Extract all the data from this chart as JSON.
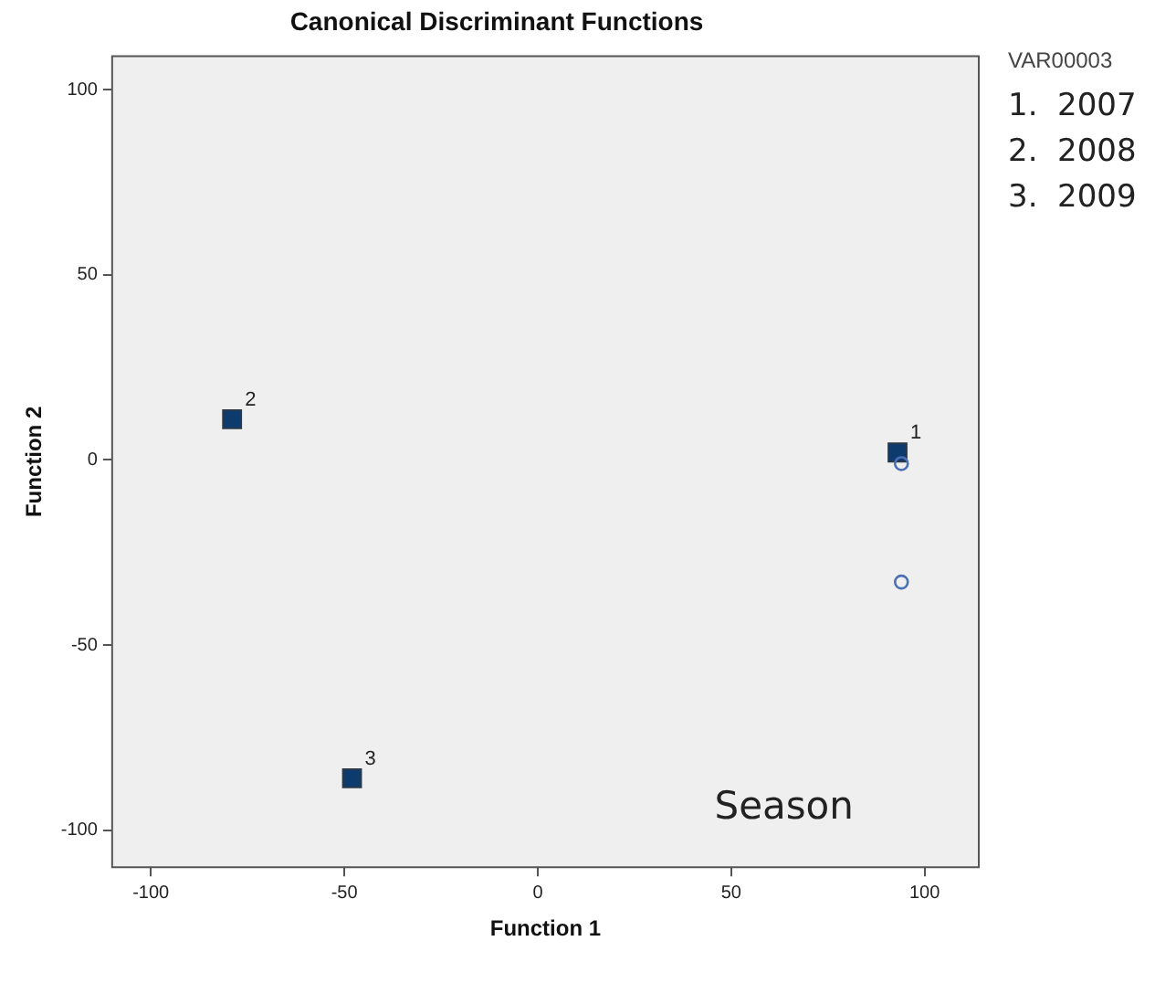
{
  "chart_data": {
    "type": "scatter",
    "title": "Canonical Discriminant Functions",
    "xlabel": "Function 1",
    "ylabel": "Function 2",
    "legend_title": "VAR00003",
    "series": [
      {
        "color": "#4a6fb5",
        "marker": "circle",
        "x": [
          94,
          94
        ],
        "values": [
          -1,
          -33
        ]
      },
      {
        "color": "#0d3b6e",
        "marker": "square",
        "x": [
          93,
          -79,
          -48
        ],
        "values": [
          2,
          11,
          -86
        ]
      }
    ],
    "annotations": [
      "1.  2007",
      "2.  2008",
      "3.  2009",
      {
        "text": "1",
        "x": 93,
        "y": 2
      },
      {
        "text": "2",
        "x": -79,
        "y": 11
      },
      {
        "text": "3",
        "x": -48,
        "y": -86
      },
      "Season"
    ],
    "xlim": [
      -110,
      114
    ],
    "ylim": [
      -110,
      109
    ],
    "xticks": [
      -100,
      -50,
      0,
      50,
      100
    ],
    "yticks": [
      -100,
      -50,
      0,
      50,
      100
    ],
    "grid": false,
    "legend": false
  }
}
